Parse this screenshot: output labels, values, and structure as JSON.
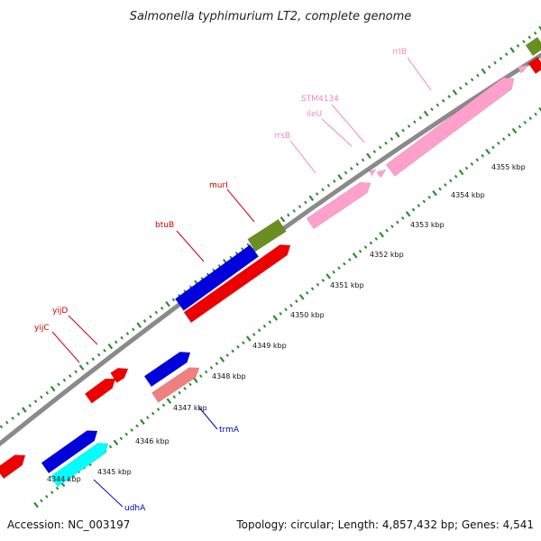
{
  "title": "Salmonella typhimurium LT2, complete genome",
  "accession": "Accession: NC_003197",
  "topology": "Topology: circular; Length: 4,857,432 bp; Genes: 4,541",
  "colors": {
    "backbone": "#8a8a8a",
    "tick": "#2e8b2e",
    "label_red": "#cc0000",
    "label_pink": "#ee88bb",
    "label_blue": "#0000bb"
  },
  "ticks": [
    {
      "label": "4344 kbp"
    },
    {
      "label": "4345 kbp"
    },
    {
      "label": "4346 kbp"
    },
    {
      "label": "4347 kbp"
    },
    {
      "label": "4348 kbp"
    },
    {
      "label": "4349 kbp"
    },
    {
      "label": "4350 kbp"
    },
    {
      "label": "4351 kbp"
    },
    {
      "label": "4352 kbp"
    },
    {
      "label": "4353 kbp"
    },
    {
      "label": "4354 kbp"
    },
    {
      "label": "4355 kbp"
    }
  ],
  "genes": [
    {
      "id": "yijC",
      "label": "yijC",
      "label_color": "#cc0000",
      "color": "#ee0000"
    },
    {
      "id": "yijD",
      "label": "yijD",
      "label_color": "#cc0000",
      "color": "#ee0000"
    },
    {
      "id": "btuB",
      "label": "btuB",
      "label_color": "#cc0000",
      "color": "#0000dd"
    },
    {
      "id": "murI",
      "label": "murI",
      "label_color": "#cc0000",
      "color": "#6b8e23"
    },
    {
      "id": "rrsB",
      "label": "rrsB",
      "label_color": "#ee88bb",
      "color": "#ffa0cc"
    },
    {
      "id": "ileU",
      "label": "ileU",
      "label_color": "#ee88bb",
      "color": "#ffa0cc"
    },
    {
      "id": "STM4134",
      "label": "STM4134",
      "label_color": "#ee88bb",
      "color": "#ffa0cc"
    },
    {
      "id": "rrlB",
      "label": "rrlB",
      "label_color": "#ee88bb",
      "color": "#ffa0cc"
    },
    {
      "id": "trmA",
      "label": "trmA",
      "label_color": "#0000bb",
      "color": "#0000dd"
    },
    {
      "id": "udhA",
      "label": "udhA",
      "label_color": "#0000bb",
      "color": "#00ffff"
    }
  ]
}
